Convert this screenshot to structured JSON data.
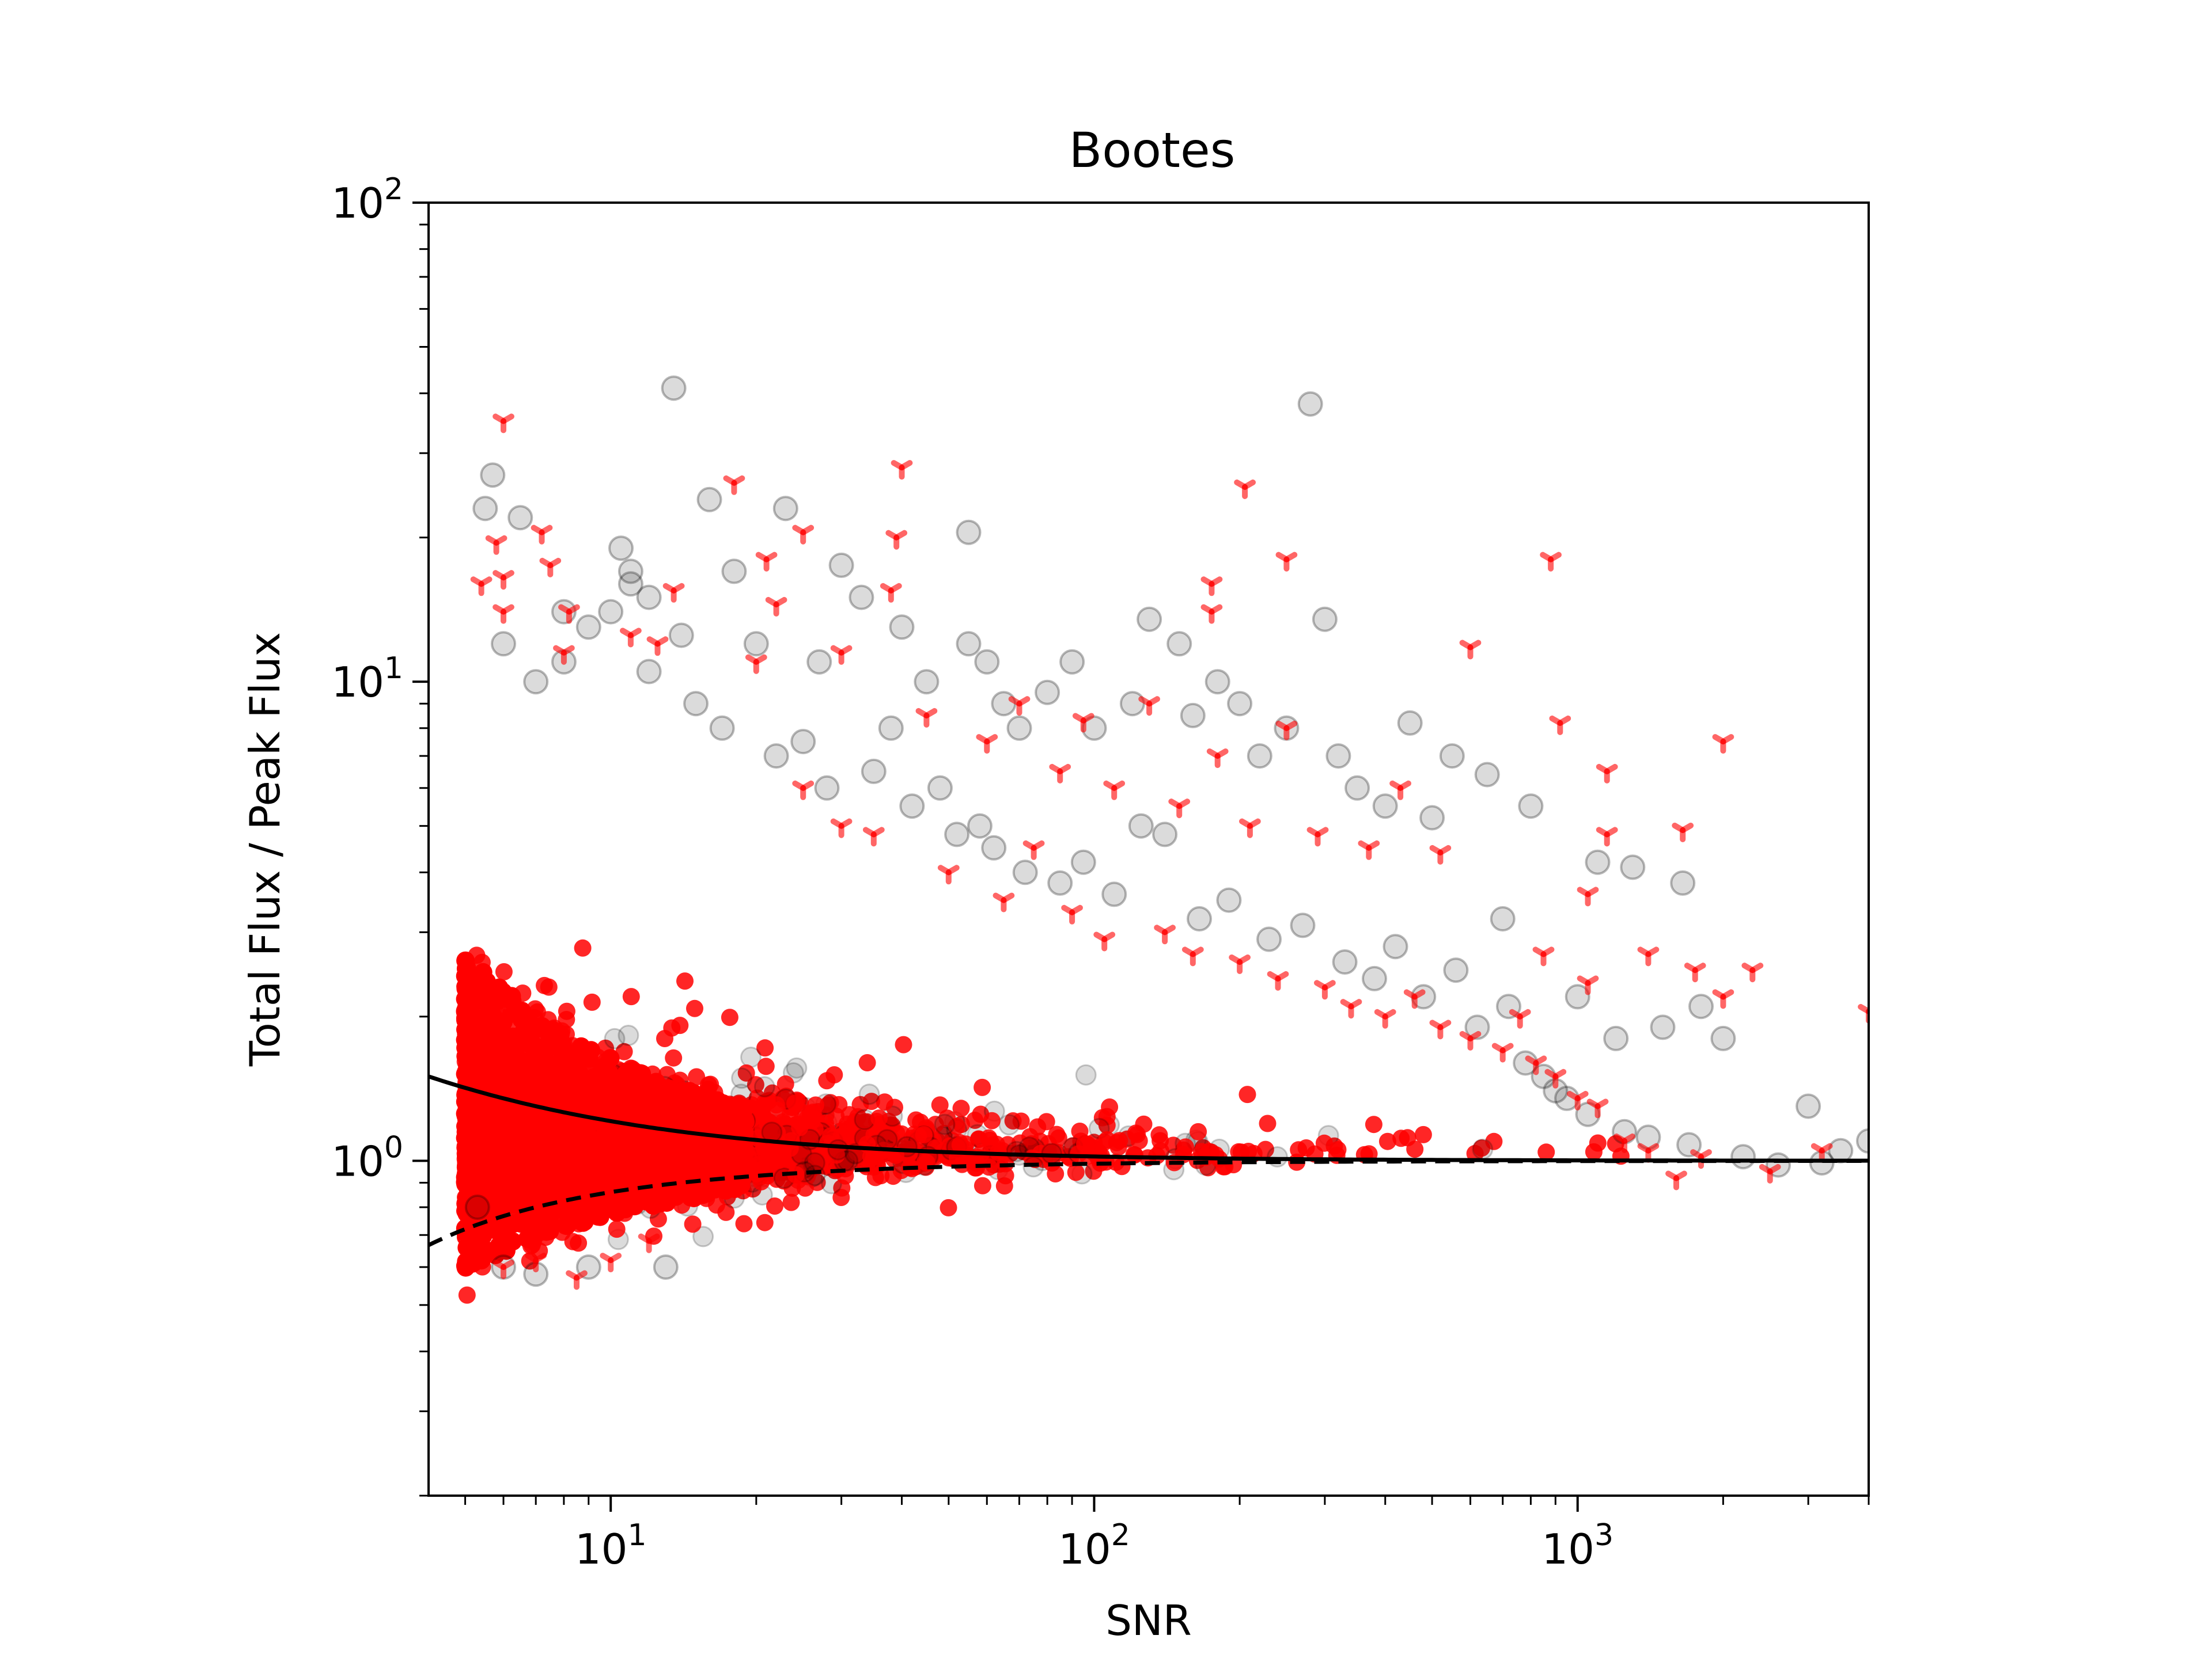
{
  "chart_data": {
    "type": "scatter",
    "title": "Bootes",
    "xlabel": "SNR",
    "ylabel": "Total Flux / Peak Flux",
    "xscale": "log",
    "yscale": "log",
    "xlim": [
      4.2,
      4000
    ],
    "ylim": [
      0.2,
      100
    ],
    "x_ticks": [
      {
        "value": 10,
        "base": "10",
        "exp": "1"
      },
      {
        "value": 100,
        "base": "10",
        "exp": "2"
      },
      {
        "value": 1000,
        "base": "10",
        "exp": "3"
      }
    ],
    "y_ticks": [
      {
        "value": 1,
        "base": "10",
        "exp": "0"
      },
      {
        "value": 10,
        "base": "10",
        "exp": "1"
      },
      {
        "value": 100,
        "base": "10",
        "exp": "2"
      }
    ],
    "grid": false,
    "legend": "none",
    "colors": {
      "all_sources": "#000000",
      "flagged_sources": "#ff0000",
      "envelope": "#000000"
    },
    "series": [
      {
        "marker": "circle",
        "color": "#000000",
        "opacity": 0.15,
        "points": [
          [
            13.5,
            41
          ],
          [
            280,
            38
          ],
          [
            5.7,
            27
          ],
          [
            5.5,
            23
          ],
          [
            6.5,
            22
          ],
          [
            10.5,
            19
          ],
          [
            16,
            24
          ],
          [
            23,
            23
          ],
          [
            55,
            20.5
          ],
          [
            8,
            14
          ],
          [
            11,
            17
          ],
          [
            12,
            15
          ],
          [
            14,
            12.5
          ],
          [
            18,
            17
          ],
          [
            20,
            12
          ],
          [
            27,
            11
          ],
          [
            30,
            17.5
          ],
          [
            33,
            15
          ],
          [
            40,
            13
          ],
          [
            45,
            10
          ],
          [
            55,
            12
          ],
          [
            60,
            11
          ],
          [
            65,
            9
          ],
          [
            70,
            8
          ],
          [
            80,
            9.5
          ],
          [
            90,
            11
          ],
          [
            100,
            8
          ],
          [
            120,
            9
          ],
          [
            130,
            13.5
          ],
          [
            150,
            12
          ],
          [
            160,
            8.5
          ],
          [
            180,
            10
          ],
          [
            200,
            9
          ],
          [
            220,
            7
          ],
          [
            250,
            8
          ],
          [
            300,
            13.5
          ],
          [
            320,
            7
          ],
          [
            350,
            6
          ],
          [
            400,
            5.5
          ],
          [
            450,
            8.2
          ],
          [
            500,
            5.2
          ],
          [
            550,
            7
          ],
          [
            650,
            6.4
          ],
          [
            700,
            3.2
          ],
          [
            800,
            5.5
          ],
          [
            1000,
            2.2
          ],
          [
            1100,
            4.2
          ],
          [
            1300,
            4.1
          ],
          [
            1500,
            1.9
          ],
          [
            1650,
            3.8
          ],
          [
            1800,
            2.1
          ],
          [
            2000,
            1.8
          ],
          [
            3000,
            1.3
          ],
          [
            3500,
            1.05
          ],
          [
            4000,
            1.1
          ],
          [
            1200,
            1.8
          ],
          [
            900,
            1.4
          ],
          [
            6,
            0.6
          ],
          [
            7,
            0.58
          ],
          [
            9,
            0.6
          ],
          [
            13,
            0.6
          ],
          [
            5.3,
            0.8
          ],
          [
            6,
            12
          ],
          [
            7,
            10
          ],
          [
            8,
            11
          ],
          [
            9,
            13
          ],
          [
            10,
            14
          ],
          [
            11,
            16
          ],
          [
            12,
            10.5
          ],
          [
            15,
            9
          ],
          [
            17,
            8
          ],
          [
            22,
            7
          ],
          [
            25,
            7.5
          ],
          [
            28,
            6
          ],
          [
            35,
            6.5
          ],
          [
            38,
            8
          ],
          [
            42,
            5.5
          ],
          [
            48,
            6
          ],
          [
            52,
            4.8
          ],
          [
            58,
            5
          ],
          [
            62,
            4.5
          ],
          [
            72,
            4
          ],
          [
            85,
            3.8
          ],
          [
            95,
            4.2
          ],
          [
            110,
            3.6
          ],
          [
            125,
            5
          ],
          [
            140,
            4.8
          ],
          [
            165,
            3.2
          ],
          [
            190,
            3.5
          ],
          [
            230,
            2.9
          ],
          [
            270,
            3.1
          ],
          [
            330,
            2.6
          ],
          [
            380,
            2.4
          ],
          [
            420,
            2.8
          ],
          [
            480,
            2.2
          ],
          [
            560,
            2.5
          ],
          [
            620,
            1.9
          ],
          [
            720,
            2.1
          ],
          [
            780,
            1.6
          ],
          [
            850,
            1.5
          ],
          [
            950,
            1.35
          ],
          [
            1050,
            1.25
          ],
          [
            1250,
            1.15
          ],
          [
            1400,
            1.12
          ],
          [
            1700,
            1.08
          ],
          [
            2200,
            1.02
          ],
          [
            2600,
            0.98
          ],
          [
            3200,
            0.99
          ]
        ]
      },
      {
        "marker": "tri",
        "color": "#ff0000",
        "opacity": 0.55,
        "points": [
          [
            6,
            35
          ],
          [
            40,
            28
          ],
          [
            18,
            26
          ],
          [
            205,
            25.5
          ],
          [
            7.2,
            20.5
          ],
          [
            25,
            20.5
          ],
          [
            39,
            20
          ],
          [
            5.8,
            19.5
          ],
          [
            250,
            18
          ],
          [
            880,
            18
          ],
          [
            21,
            18
          ],
          [
            7.5,
            17.5
          ],
          [
            6,
            16.5
          ],
          [
            175,
            16
          ],
          [
            5.4,
            16
          ],
          [
            38,
            15.5
          ],
          [
            13.5,
            15.5
          ],
          [
            22,
            14.5
          ],
          [
            175,
            14
          ],
          [
            8.2,
            14
          ],
          [
            6,
            14
          ],
          [
            11,
            12.5
          ],
          [
            12.5,
            12
          ],
          [
            600,
            11.8
          ],
          [
            8,
            11.5
          ],
          [
            30,
            11.5
          ],
          [
            20,
            11
          ],
          [
            95,
            8.3
          ],
          [
            920,
            8.2
          ],
          [
            2000,
            7.5
          ],
          [
            1150,
            6.5
          ],
          [
            430,
            6
          ],
          [
            250,
            8
          ],
          [
            180,
            7
          ],
          [
            130,
            9
          ],
          [
            70,
            9
          ],
          [
            45,
            8.5
          ],
          [
            60,
            7.5
          ],
          [
            85,
            6.5
          ],
          [
            110,
            6
          ],
          [
            150,
            5.5
          ],
          [
            210,
            5
          ],
          [
            290,
            4.8
          ],
          [
            370,
            4.5
          ],
          [
            520,
            4.4
          ],
          [
            1150,
            4.8
          ],
          [
            1650,
            4.9
          ],
          [
            1050,
            3.6
          ],
          [
            1750,
            2.5
          ],
          [
            2300,
            2.5
          ],
          [
            2000,
            2.2
          ],
          [
            1400,
            2.7
          ],
          [
            850,
            2.7
          ],
          [
            1050,
            2.35
          ],
          [
            4000,
            2.05
          ],
          [
            3200,
            1.05
          ],
          [
            2500,
            0.95
          ],
          [
            1600,
            0.92
          ],
          [
            30,
            5
          ],
          [
            25,
            6
          ],
          [
            35,
            4.8
          ],
          [
            50,
            4
          ],
          [
            65,
            3.5
          ],
          [
            75,
            4.5
          ],
          [
            90,
            3.3
          ],
          [
            105,
            2.9
          ],
          [
            140,
            3
          ],
          [
            160,
            2.7
          ],
          [
            200,
            2.6
          ],
          [
            240,
            2.4
          ],
          [
            300,
            2.3
          ],
          [
            340,
            2.1
          ],
          [
            400,
            2
          ],
          [
            460,
            2.2
          ],
          [
            520,
            1.9
          ],
          [
            600,
            1.8
          ],
          [
            700,
            1.7
          ],
          [
            760,
            2
          ],
          [
            820,
            1.6
          ],
          [
            900,
            1.5
          ],
          [
            1000,
            1.35
          ],
          [
            1100,
            1.3
          ],
          [
            1250,
            1.1
          ],
          [
            1400,
            1.05
          ],
          [
            1800,
            1.02
          ],
          [
            8.5,
            0.57
          ],
          [
            6,
            0.6
          ],
          [
            7,
            0.62
          ],
          [
            10,
            0.62
          ],
          [
            12,
            0.68
          ]
        ]
      }
    ],
    "curves": [
      {
        "style": "solid",
        "relation": "y = 1 + 2.1 / x",
        "color": "#000000"
      },
      {
        "style": "dashed",
        "relation": "y = 1 - 1.4 / x",
        "color": "#000000"
      }
    ]
  }
}
